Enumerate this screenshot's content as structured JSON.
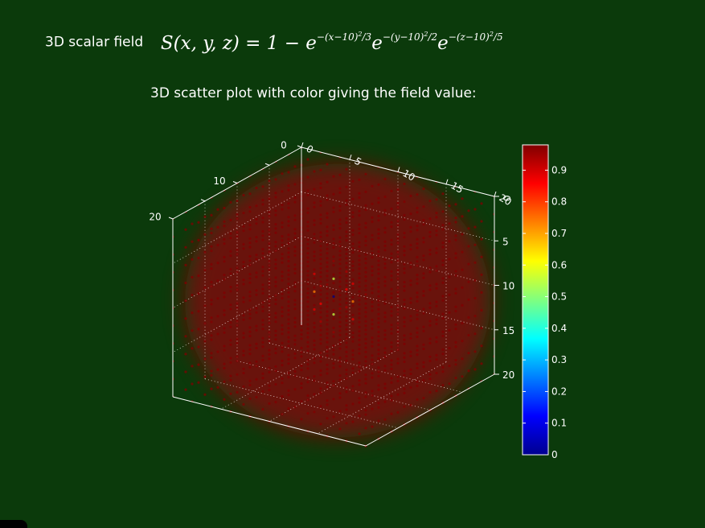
{
  "slide": {
    "field_label": "3D scalar field",
    "formula": "S(x, y, z) = 1 − e^−(x−10)²/3 e^−(y−10)²/2 e^−(z−10)²/5",
    "subtitle": "3D scatter plot with color giving the field value:"
  },
  "chart_data": {
    "type": "scatter",
    "title": "",
    "projection": "3d",
    "x_ticks": [
      "0",
      "5",
      "10",
      "15",
      "20"
    ],
    "y_ticks": [
      "0",
      "5",
      "10",
      "15",
      "20"
    ],
    "z_ticks": [
      "0",
      "10",
      "20"
    ],
    "xlim": [
      0,
      20
    ],
    "ylim": [
      0,
      20
    ],
    "zlim": [
      0,
      20
    ],
    "grid": true,
    "field": {
      "expression": "1 - exp(-(x-10)^2/3) * exp(-(y-10)^2/2) * exp(-(z-10)^2/5)",
      "center": [
        10,
        10,
        10
      ],
      "denominators": [
        3,
        2,
        5
      ]
    },
    "colorbar": {
      "colormap": "jet",
      "range": [
        0,
        0.98
      ],
      "ticks": [
        "0",
        "0.1",
        "0.2",
        "0.3",
        "0.4",
        "0.5",
        "0.6",
        "0.7",
        "0.8",
        "0.9"
      ]
    }
  },
  "colors": {
    "background": "#0b3a0b",
    "axis": "#ffffff"
  }
}
